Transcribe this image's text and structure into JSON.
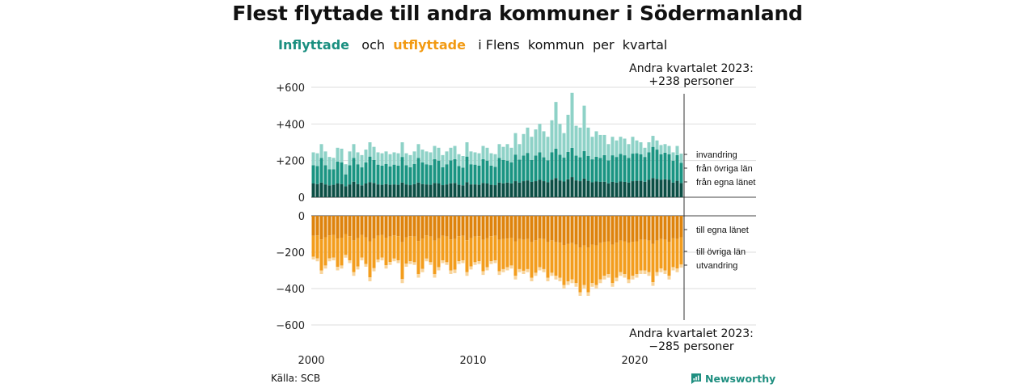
{
  "chart_data": {
    "type": "bar",
    "title": "Flest flyttade till andra kommuner i Södermanland",
    "subtitle": {
      "part1": "Inflyttade",
      "part2": "och",
      "part3": "utflyttade",
      "part4": "i Flens  kommun  per  kvartal"
    },
    "x_ticks": [
      "2000",
      "2010",
      "2020"
    ],
    "y_ticks_top": [
      "+600",
      "+400",
      "+200",
      "0"
    ],
    "y_ticks_bottom": [
      "0",
      "−200",
      "−400",
      "−600"
    ],
    "annotation_top": {
      "line1": "Andra kvartalet 2023:",
      "line2": "+238 personer"
    },
    "annotation_bottom": {
      "line1": "Andra kvartalet 2023:",
      "line2": "−285 personer"
    },
    "in_labels": {
      "invandring": "invandring",
      "ovriga": "från övriga län",
      "egna": "från egna länet"
    },
    "out_labels": {
      "egna": "till egna länet",
      "ovriga": "till övriga län",
      "utvandring": "utvandring"
    },
    "start": "2000 Q1",
    "end": "2023 Q2",
    "colors": {
      "in_egna": "#0b4f45",
      "in_ovriga": "#1a9482",
      "in_invandring": "#8ed2c7",
      "out_egna": "#de830c",
      "out_ovriga": "#f39d1d",
      "out_utvandring": "#f8d49b"
    },
    "inflyttade_totals": [
      245,
      240,
      290,
      250,
      220,
      215,
      270,
      265,
      180,
      250,
      290,
      245,
      230,
      260,
      300,
      275,
      245,
      240,
      250,
      235,
      245,
      240,
      300,
      240,
      230,
      250,
      290,
      260,
      250,
      245,
      280,
      270,
      230,
      250,
      270,
      280,
      235,
      225,
      300,
      250,
      245,
      240,
      280,
      270,
      240,
      235,
      290,
      275,
      290,
      270,
      350,
      290,
      345,
      380,
      330,
      370,
      400,
      360,
      330,
      420,
      520,
      400,
      350,
      450,
      570,
      390,
      380,
      500,
      380,
      330,
      360,
      340,
      340,
      290,
      330,
      310,
      330,
      320,
      290,
      330,
      310,
      300,
      270,
      300,
      335,
      310,
      285,
      290,
      280,
      245,
      280,
      238
    ],
    "in_egna_lanet": [
      75,
      72,
      80,
      70,
      65,
      68,
      75,
      72,
      60,
      70,
      85,
      72,
      65,
      75,
      82,
      78,
      70,
      68,
      72,
      68,
      70,
      68,
      80,
      70,
      66,
      72,
      80,
      72,
      70,
      68,
      78,
      75,
      66,
      70,
      76,
      78,
      68,
      65,
      82,
      70,
      70,
      68,
      78,
      75,
      68,
      66,
      80,
      76,
      80,
      76,
      88,
      80,
      88,
      92,
      84,
      88,
      95,
      88,
      82,
      96,
      105,
      92,
      86,
      98,
      110,
      92,
      88,
      102,
      90,
      82,
      86,
      84,
      85,
      76,
      84,
      80,
      86,
      84,
      80,
      88,
      90,
      90,
      85,
      95,
      105,
      100,
      95,
      98,
      95,
      80,
      90,
      78
    ],
    "in_ovriga_lan": [
      100,
      98,
      135,
      105,
      88,
      85,
      120,
      118,
      65,
      105,
      130,
      108,
      98,
      115,
      140,
      125,
      108,
      105,
      110,
      100,
      108,
      105,
      140,
      105,
      98,
      110,
      135,
      118,
      110,
      108,
      130,
      125,
      98,
      110,
      125,
      130,
      102,
      97,
      140,
      110,
      108,
      105,
      130,
      125,
      105,
      100,
      135,
      128,
      120,
      115,
      145,
      125,
      140,
      150,
      120,
      140,
      150,
      130,
      120,
      150,
      160,
      140,
      130,
      150,
      160,
      135,
      130,
      150,
      135,
      125,
      135,
      130,
      145,
      125,
      145,
      140,
      150,
      145,
      135,
      150,
      150,
      145,
      135,
      150,
      170,
      160,
      140,
      145,
      140,
      120,
      140,
      110
    ],
    "utflyttade_totals": [
      -240,
      -250,
      -320,
      -290,
      -250,
      -245,
      -300,
      -290,
      -230,
      -260,
      -330,
      -295,
      -245,
      -280,
      -360,
      -305,
      -255,
      -245,
      -290,
      -270,
      -250,
      -260,
      -370,
      -280,
      -265,
      -270,
      -340,
      -310,
      -250,
      -270,
      -340,
      -300,
      -260,
      -270,
      -320,
      -315,
      -265,
      -260,
      -330,
      -295,
      -270,
      -265,
      -325,
      -300,
      -265,
      -260,
      -325,
      -310,
      -300,
      -290,
      -350,
      -310,
      -320,
      -310,
      -360,
      -330,
      -300,
      -310,
      -360,
      -330,
      -350,
      -360,
      -400,
      -380,
      -370,
      -390,
      -440,
      -400,
      -440,
      -390,
      -400,
      -370,
      -350,
      -340,
      -390,
      -360,
      -330,
      -340,
      -370,
      -350,
      -340,
      -320,
      -320,
      -330,
      -385,
      -330,
      -310,
      -320,
      -350,
      -300,
      -310,
      -285
    ],
    "out_egna_lanet": [
      -110,
      -108,
      -130,
      -118,
      -108,
      -106,
      -125,
      -120,
      -100,
      -112,
      -135,
      -122,
      -106,
      -118,
      -140,
      -125,
      -110,
      -106,
      -120,
      -114,
      -108,
      -112,
      -145,
      -118,
      -112,
      -114,
      -138,
      -126,
      -108,
      -114,
      -136,
      -124,
      -110,
      -114,
      -130,
      -128,
      -112,
      -110,
      -134,
      -122,
      -114,
      -112,
      -132,
      -124,
      -112,
      -110,
      -132,
      -127,
      -125,
      -120,
      -140,
      -128,
      -132,
      -128,
      -145,
      -135,
      -125,
      -128,
      -145,
      -135,
      -145,
      -148,
      -160,
      -155,
      -150,
      -158,
      -175,
      -162,
      -175,
      -158,
      -162,
      -150,
      -145,
      -140,
      -158,
      -148,
      -136,
      -140,
      -150,
      -144,
      -140,
      -132,
      -132,
      -136,
      -155,
      -136,
      -128,
      -132,
      -144,
      -124,
      -128,
      -118
    ],
    "out_ovriga_lan": [
      -115,
      -126,
      -170,
      -155,
      -126,
      -124,
      -155,
      -153,
      -115,
      -133,
      -175,
      -157,
      -124,
      -147,
      -198,
      -163,
      -130,
      -124,
      -152,
      -140,
      -127,
      -133,
      -203,
      -145,
      -138,
      -141,
      -182,
      -166,
      -127,
      -141,
      -184,
      -158,
      -135,
      -141,
      -170,
      -168,
      -138,
      -135,
      -176,
      -156,
      -141,
      -138,
      -173,
      -159,
      -138,
      -135,
      -173,
      -166,
      -158,
      -153,
      -190,
      -165,
      -170,
      -165,
      -195,
      -178,
      -158,
      -165,
      -195,
      -178,
      -185,
      -193,
      -220,
      -205,
      -200,
      -212,
      -245,
      -218,
      -245,
      -212,
      -218,
      -200,
      -185,
      -180,
      -212,
      -192,
      -174,
      -180,
      -200,
      -186,
      -180,
      -168,
      -168,
      -174,
      -210,
      -174,
      -162,
      -168,
      -186,
      -158,
      -162,
      -150
    ]
  }
}
